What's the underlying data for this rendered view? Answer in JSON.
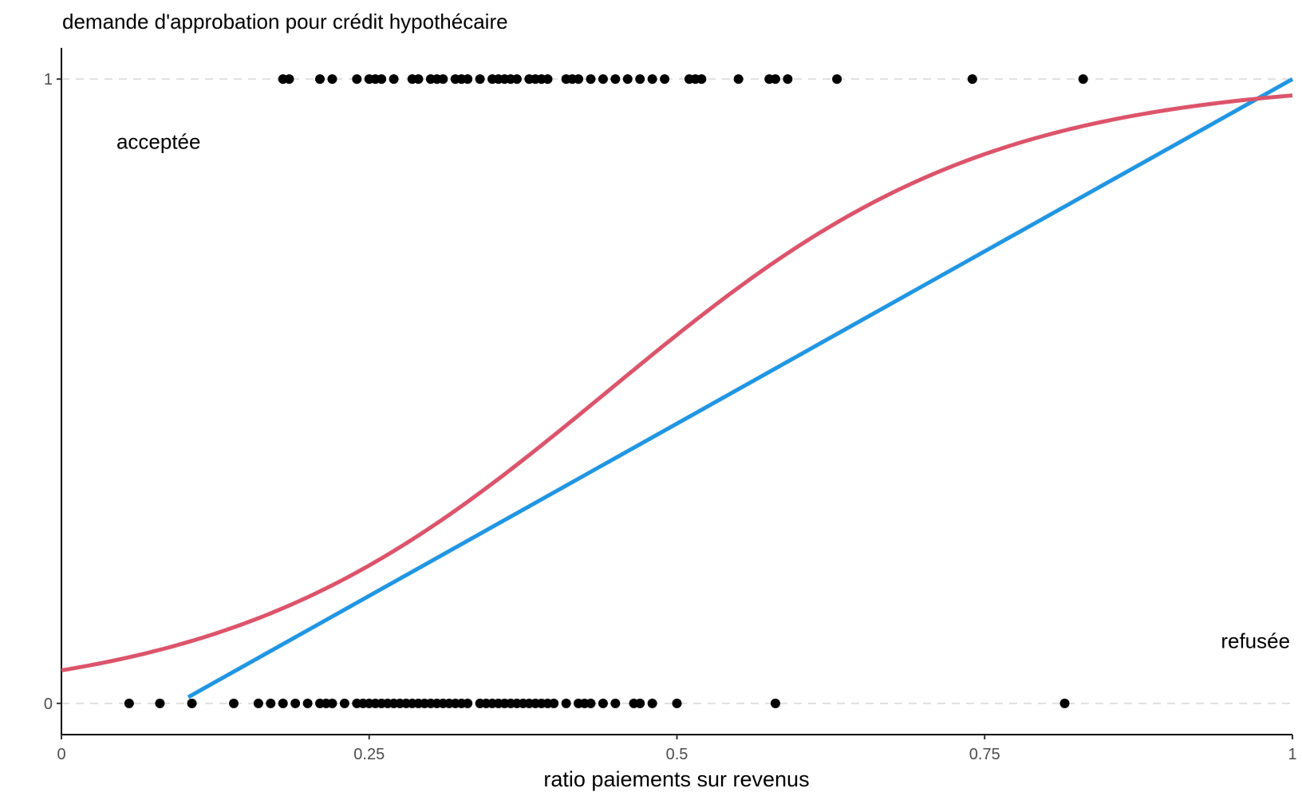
{
  "chart_data": {
    "type": "scatter",
    "title": "demande d'approbation pour crédit hypothécaire",
    "xlabel": "ratio paiements sur revenus",
    "ylabel": "",
    "xlim": [
      0,
      1
    ],
    "ylim": [
      -0.05,
      1.05
    ],
    "x_ticks": [
      {
        "value": 0,
        "label": "0"
      },
      {
        "value": 0.25,
        "label": "0.25"
      },
      {
        "value": 0.5,
        "label": "0.5"
      },
      {
        "value": 0.75,
        "label": "0.75"
      },
      {
        "value": 1,
        "label": "1"
      }
    ],
    "y_ticks": [
      {
        "value": 0,
        "label": "0"
      },
      {
        "value": 1,
        "label": "1"
      }
    ],
    "grid": {
      "horizontal_dashed_at_ticks": true,
      "vertical": false
    },
    "annotations": [
      {
        "text": "acceptée",
        "x": 0.04,
        "y": 0.9
      },
      {
        "text": "refusée",
        "x": 0.97,
        "y": 0.1
      }
    ],
    "points": {
      "color": "#000000",
      "accepted_y1_x": [
        0.18,
        0.185,
        0.21,
        0.22,
        0.24,
        0.25,
        0.255,
        0.26,
        0.27,
        0.285,
        0.29,
        0.3,
        0.305,
        0.31,
        0.32,
        0.325,
        0.33,
        0.34,
        0.35,
        0.355,
        0.36,
        0.365,
        0.37,
        0.38,
        0.385,
        0.39,
        0.395,
        0.41,
        0.415,
        0.42,
        0.43,
        0.44,
        0.45,
        0.46,
        0.47,
        0.48,
        0.49,
        0.51,
        0.515,
        0.52,
        0.55,
        0.575,
        0.58,
        0.59,
        0.63,
        0.74,
        0.83
      ],
      "denied_y0_x": [
        0.055,
        0.08,
        0.106,
        0.14,
        0.16,
        0.17,
        0.18,
        0.19,
        0.2,
        0.21,
        0.215,
        0.22,
        0.23,
        0.24,
        0.245,
        0.25,
        0.255,
        0.26,
        0.265,
        0.27,
        0.275,
        0.28,
        0.285,
        0.29,
        0.295,
        0.3,
        0.305,
        0.31,
        0.315,
        0.32,
        0.325,
        0.33,
        0.34,
        0.345,
        0.35,
        0.355,
        0.36,
        0.365,
        0.37,
        0.375,
        0.38,
        0.385,
        0.39,
        0.395,
        0.4,
        0.41,
        0.42,
        0.425,
        0.43,
        0.44,
        0.45,
        0.465,
        0.47,
        0.48,
        0.5,
        0.58,
        0.815
      ]
    },
    "series": [
      {
        "kind": "linear",
        "color": "#2196e3",
        "x": [
          0.103,
          1.0
        ],
        "y": [
          0.01,
          1.0
        ]
      },
      {
        "kind": "logistic",
        "color": "#dc546b",
        "intercept": -2.885,
        "slope": 6.5,
        "x_range": [
          0,
          1
        ]
      }
    ]
  }
}
